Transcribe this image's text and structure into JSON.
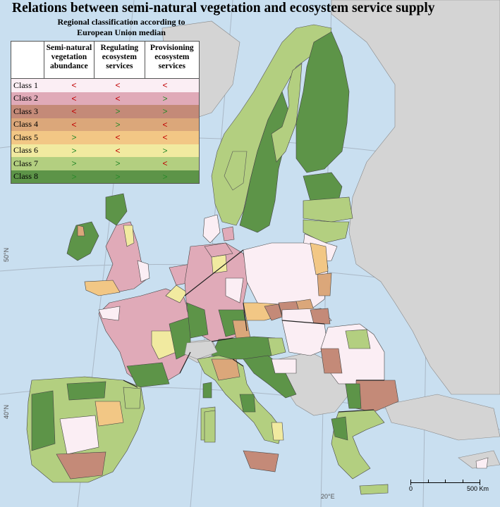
{
  "title": "Relations between semi-natural vegetation and ecosystem service supply",
  "subtitle": "Regional classification according to European Union median",
  "legend": {
    "headers": [
      "Semi-natural vegetation abundance",
      "Regulating ecosystem services",
      "Provisioning ecosystem services"
    ],
    "headers_lines": [
      [
        "Semi-natural",
        "vegetation",
        "abundance"
      ],
      [
        "Regulating",
        "ecosystem",
        "services"
      ],
      [
        "Provisioning",
        "ecosystem",
        "services"
      ]
    ],
    "classes": [
      {
        "label": "Class 1",
        "color": "#fbeef4",
        "symbols": [
          "<",
          "<",
          "<"
        ]
      },
      {
        "label": "Class 2",
        "color": "#e0aab8",
        "symbols": [
          "<",
          "<",
          ">"
        ]
      },
      {
        "label": "Class 3",
        "color": "#c48a78",
        "symbols": [
          "<",
          ">",
          ">"
        ]
      },
      {
        "label": "Class 4",
        "color": "#dba77a",
        "symbols": [
          "<",
          ">",
          "<"
        ]
      },
      {
        "label": "Class 5",
        "color": "#f2c785",
        "symbols": [
          ">",
          "<",
          "<"
        ]
      },
      {
        "label": "Class 6",
        "color": "#f1eaa0",
        "symbols": [
          ">",
          "<",
          ">"
        ]
      },
      {
        "label": "Class 7",
        "color": "#b3cf80",
        "symbols": [
          ">",
          ">",
          "<"
        ]
      },
      {
        "label": "Class 8",
        "color": "#5d9448",
        "symbols": [
          ">",
          ">",
          ">"
        ]
      }
    ],
    "symbol_colors": {
      "<": "#c00000",
      ">": "#2a8a2a"
    }
  },
  "colors": {
    "sea": "#c9dff0",
    "non_eu": "#d4d4d4",
    "graticule": "#aab8c6",
    "borders": "#333333"
  },
  "graticule_labels": {
    "lat_50": "50°N",
    "lat_40": "40°N",
    "lon_20": "20°E"
  },
  "scalebar": {
    "zero": "0",
    "end": "500 Km"
  }
}
